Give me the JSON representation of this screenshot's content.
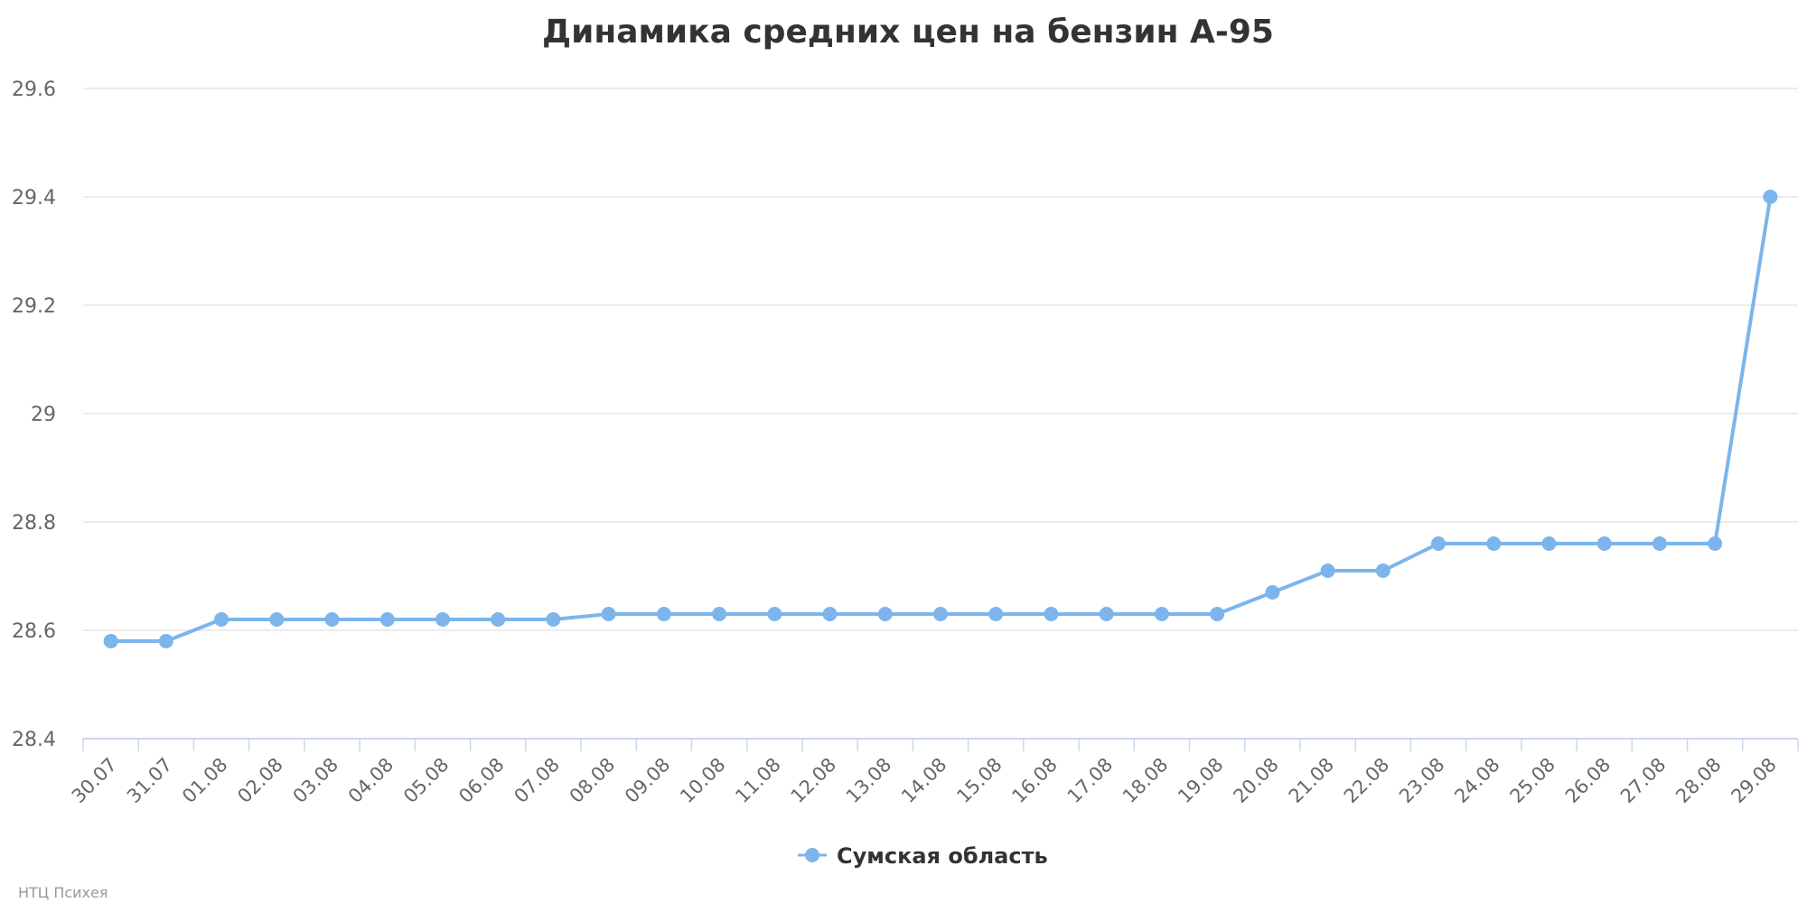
{
  "credits": "НТЦ Психея",
  "colors": {
    "series": "#7cb5ec",
    "grid": "#e6e6e6",
    "axis": "#ccd6eb"
  },
  "chart_data": {
    "type": "line",
    "title": "Динамика средних цен на бензин А-95",
    "xlabel": "",
    "ylabel": "",
    "ylim": [
      28.4,
      29.6
    ],
    "y_ticks": [
      28.4,
      28.6,
      28.8,
      29,
      29.2,
      29.4,
      29.6
    ],
    "y_tick_labels": [
      "28.4",
      "28.6",
      "28.8",
      "29",
      "29.2",
      "29.4",
      "29.6"
    ],
    "grid": true,
    "legend_position": "bottom-center",
    "categories": [
      "30.07",
      "31.07",
      "01.08",
      "02.08",
      "03.08",
      "04.08",
      "05.08",
      "06.08",
      "07.08",
      "08.08",
      "09.08",
      "10.08",
      "11.08",
      "12.08",
      "13.08",
      "14.08",
      "15.08",
      "16.08",
      "17.08",
      "18.08",
      "19.08",
      "20.08",
      "21.08",
      "22.08",
      "23.08",
      "24.08",
      "25.08",
      "26.08",
      "27.08",
      "28.08",
      "29.08"
    ],
    "series": [
      {
        "name": "Сумская область",
        "color": "#7cb5ec",
        "values": [
          28.58,
          28.58,
          28.62,
          28.62,
          28.62,
          28.62,
          28.62,
          28.62,
          28.62,
          28.63,
          28.63,
          28.63,
          28.63,
          28.63,
          28.63,
          28.63,
          28.63,
          28.63,
          28.63,
          28.63,
          28.63,
          28.67,
          28.71,
          28.71,
          28.76,
          28.76,
          28.76,
          28.76,
          28.76,
          28.76,
          29.4
        ]
      }
    ]
  }
}
